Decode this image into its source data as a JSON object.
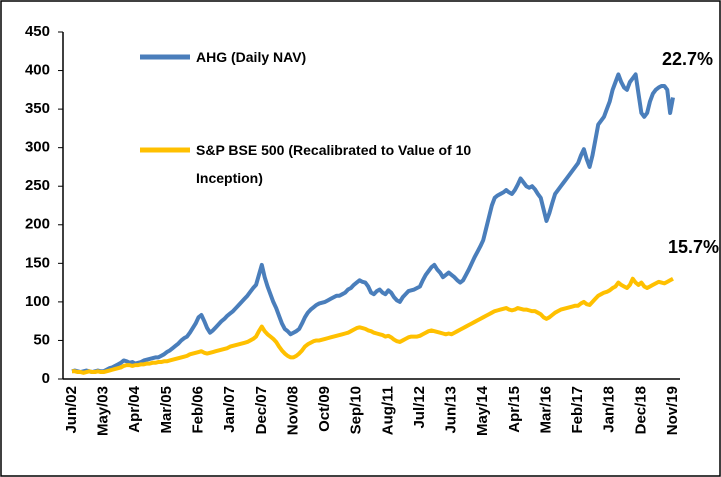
{
  "chart_data": {
    "type": "line",
    "categories": [
      "Jun/02",
      null,
      null,
      null,
      null,
      null,
      null,
      null,
      null,
      null,
      null,
      "May/03",
      null,
      null,
      null,
      null,
      null,
      null,
      null,
      null,
      null,
      null,
      "Apr/04",
      null,
      null,
      null,
      null,
      null,
      null,
      null,
      null,
      null,
      null,
      "Mar/05",
      null,
      null,
      null,
      null,
      null,
      null,
      null,
      null,
      null,
      null,
      "Feb/06",
      null,
      null,
      null,
      null,
      null,
      null,
      null,
      null,
      null,
      null,
      "Jan/07",
      null,
      null,
      null,
      null,
      null,
      null,
      null,
      null,
      null,
      null,
      "Dec/07",
      null,
      null,
      null,
      null,
      null,
      null,
      null,
      null,
      null,
      null,
      "Nov/08",
      null,
      null,
      null,
      null,
      null,
      null,
      null,
      null,
      null,
      null,
      "Oct/09",
      null,
      null,
      null,
      null,
      null,
      null,
      null,
      null,
      null,
      null,
      "Sep/10",
      null,
      null,
      null,
      null,
      null,
      null,
      null,
      null,
      null,
      null,
      "Aug/11",
      null,
      null,
      null,
      null,
      null,
      null,
      null,
      null,
      null,
      null,
      "Jul/12",
      null,
      null,
      null,
      null,
      null,
      null,
      null,
      null,
      null,
      null,
      "Jun/13",
      null,
      null,
      null,
      null,
      null,
      null,
      null,
      null,
      null,
      null,
      "May/14",
      null,
      null,
      null,
      null,
      null,
      null,
      null,
      null,
      null,
      null,
      "Apr/15",
      null,
      null,
      null,
      null,
      null,
      null,
      null,
      null,
      null,
      null,
      "Mar/16",
      null,
      null,
      null,
      null,
      null,
      null,
      null,
      null,
      null,
      null,
      "Feb/17",
      null,
      null,
      null,
      null,
      null,
      null,
      null,
      null,
      null,
      null,
      "Jan/18",
      null,
      null,
      null,
      null,
      null,
      null,
      null,
      null,
      null,
      null,
      "Dec/18",
      null,
      null,
      null,
      null,
      null,
      null,
      null,
      null,
      null,
      null,
      "Nov/19"
    ],
    "series": [
      {
        "name": "AHG  (Daily NAV)",
        "color": "#4a7ebb",
        "values": [
          10,
          11,
          10,
          9,
          10,
          11,
          10,
          9,
          10,
          11,
          10,
          10,
          12,
          14,
          15,
          17,
          19,
          21,
          24,
          23,
          21,
          22,
          20,
          21,
          22,
          24,
          25,
          26,
          27,
          28,
          28,
          30,
          32,
          35,
          37,
          40,
          43,
          46,
          50,
          53,
          55,
          60,
          66,
          72,
          80,
          83,
          75,
          66,
          60,
          63,
          67,
          71,
          75,
          78,
          82,
          85,
          88,
          92,
          96,
          100,
          104,
          108,
          113,
          118,
          122,
          135,
          148,
          132,
          120,
          110,
          100,
          92,
          82,
          72,
          65,
          62,
          58,
          60,
          62,
          65,
          72,
          80,
          86,
          90,
          93,
          96,
          98,
          99,
          100,
          102,
          104,
          106,
          108,
          108,
          110,
          112,
          116,
          118,
          122,
          125,
          128,
          126,
          125,
          120,
          112,
          110,
          114,
          116,
          112,
          110,
          115,
          112,
          106,
          102,
          100,
          106,
          110,
          114,
          115,
          116,
          118,
          120,
          128,
          135,
          140,
          145,
          148,
          142,
          138,
          132,
          135,
          138,
          135,
          132,
          128,
          125,
          128,
          135,
          142,
          150,
          158,
          165,
          172,
          180,
          195,
          210,
          225,
          235,
          238,
          240,
          242,
          245,
          242,
          240,
          245,
          252,
          260,
          255,
          250,
          248,
          250,
          246,
          240,
          235,
          220,
          205,
          215,
          228,
          240,
          245,
          250,
          255,
          260,
          265,
          270,
          275,
          280,
          290,
          298,
          285,
          275,
          290,
          310,
          330,
          335,
          340,
          350,
          360,
          375,
          385,
          395,
          385,
          378,
          375,
          385,
          390,
          395,
          370,
          345,
          340,
          345,
          360,
          370,
          375,
          378,
          380,
          380,
          375,
          345,
          365
        ]
      },
      {
        "name": "S&P BSE 500  (Recalibrated to Value of 10 Inception)",
        "color": "#ffc000",
        "values": [
          10,
          10,
          9,
          9,
          8,
          9,
          10,
          9,
          9,
          10,
          9,
          9,
          10,
          11,
          12,
          13,
          14,
          15,
          17,
          18,
          18,
          17,
          18,
          18,
          19,
          19,
          20,
          20,
          21,
          21,
          22,
          22,
          23,
          23,
          24,
          25,
          26,
          27,
          28,
          29,
          30,
          32,
          33,
          34,
          35,
          36,
          34,
          33,
          34,
          35,
          36,
          37,
          38,
          39,
          40,
          42,
          43,
          44,
          45,
          46,
          47,
          48,
          50,
          52,
          55,
          62,
          68,
          62,
          58,
          55,
          52,
          48,
          42,
          37,
          33,
          30,
          28,
          28,
          30,
          33,
          37,
          42,
          45,
          47,
          49,
          50,
          50,
          51,
          52,
          53,
          54,
          55,
          56,
          57,
          58,
          59,
          60,
          62,
          64,
          66,
          67,
          66,
          65,
          63,
          62,
          60,
          59,
          58,
          57,
          55,
          56,
          54,
          51,
          49,
          48,
          50,
          52,
          54,
          55,
          55,
          55,
          56,
          58,
          60,
          62,
          63,
          62,
          61,
          60,
          59,
          58,
          59,
          58,
          60,
          62,
          64,
          66,
          68,
          70,
          72,
          74,
          76,
          78,
          80,
          82,
          84,
          86,
          88,
          89,
          90,
          91,
          92,
          90,
          89,
          90,
          92,
          91,
          90,
          90,
          89,
          88,
          88,
          86,
          84,
          80,
          78,
          80,
          83,
          86,
          88,
          90,
          91,
          92,
          93,
          94,
          95,
          95,
          98,
          100,
          97,
          96,
          100,
          104,
          108,
          110,
          112,
          113,
          115,
          118,
          120,
          125,
          122,
          120,
          118,
          122,
          130,
          125,
          122,
          125,
          120,
          118,
          120,
          122,
          124,
          126,
          125,
          124,
          126,
          128,
          130
        ]
      }
    ],
    "annotations": [
      "22.7%",
      "15.7%"
    ],
    "ylim": [
      0,
      450
    ],
    "yticks": [
      0,
      50,
      100,
      150,
      200,
      250,
      300,
      350,
      400,
      450
    ],
    "grid": false
  }
}
